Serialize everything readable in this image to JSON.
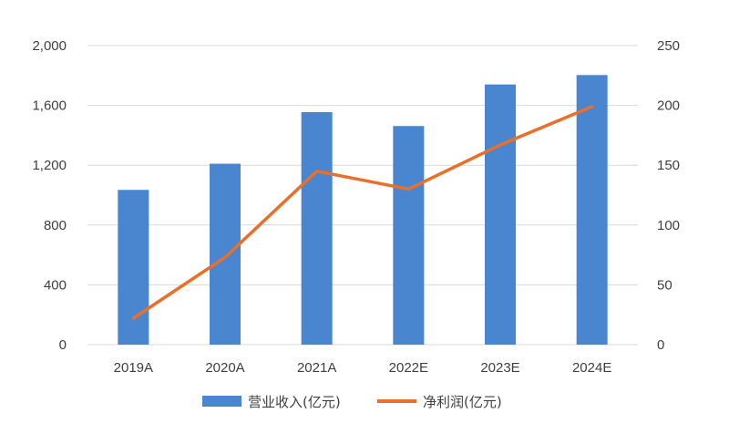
{
  "chart_data": {
    "type": "bar+line",
    "categories": [
      "2019A",
      "2020A",
      "2021A",
      "2022E",
      "2023E",
      "2024E"
    ],
    "series": [
      {
        "name": "营业收入(亿元)",
        "type": "bar",
        "axis": "left",
        "values": [
          1035,
          1210,
          1555,
          1462,
          1740,
          1803
        ]
      },
      {
        "name": "净利润(亿元)",
        "type": "line",
        "axis": "right",
        "values": [
          22,
          73,
          145,
          130,
          167,
          199
        ]
      }
    ],
    "y_left": {
      "lim": [
        0,
        2000
      ],
      "ticks": [
        "0",
        "400",
        "800",
        "1,200",
        "1,600",
        "2,000"
      ]
    },
    "y_right": {
      "lim": [
        0,
        250
      ],
      "ticks": [
        "0",
        "50",
        "100",
        "150",
        "200",
        "250"
      ]
    },
    "grid": true,
    "legend": "bottom",
    "colors": {
      "bar": "#4a86cf",
      "line": "#e8702a",
      "grid": "#d9d9d9",
      "text": "#404040"
    }
  }
}
